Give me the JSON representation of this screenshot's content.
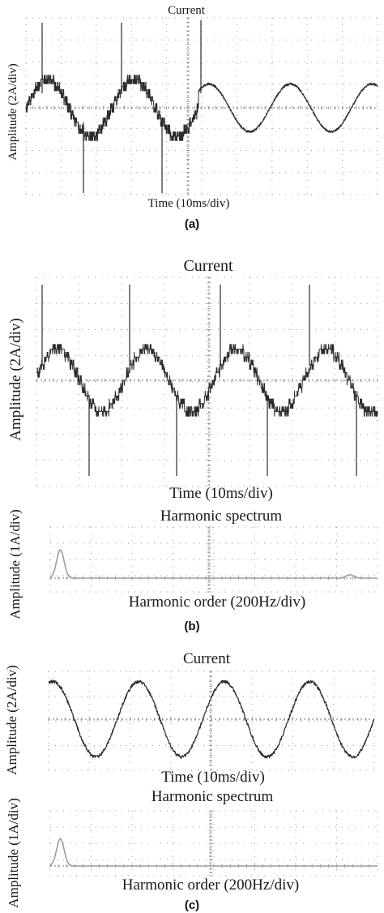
{
  "chart_data": [
    {
      "type": "line",
      "panel": "(a)",
      "title": "Current",
      "xlabel": "Time (10ms/div)",
      "ylabel": "Amplitude (2A/div)",
      "grid": true,
      "series": [
        {
          "shape": "stepped multilevel sine with switching spikes, then smooth sine",
          "peak_div": 1.25,
          "spike_div": 2.3,
          "cycles": 2,
          "smooth_after_cycles": 2,
          "smooth_cycles": 2.2,
          "smooth_peak_div": 1.05,
          "color": "#2b2b2b"
        }
      ]
    },
    {
      "type": "line",
      "panel": "(b)",
      "title": "Current",
      "xlabel": "Time (10ms/div)",
      "ylabel": "Amplitude (2A/div)",
      "grid": true,
      "series": [
        {
          "shape": "stepped multilevel sine with switching spikes",
          "peak_div": 1.2,
          "spike_div": 2.3,
          "cycles": 3.8,
          "color": "#2b2b2b"
        }
      ]
    },
    {
      "type": "area",
      "panel": "(b)",
      "title": "Harmonic spectrum",
      "xlabel": "Harmonic order (200Hz/div)",
      "ylabel": "Amplitude (1A/div)",
      "grid": true,
      "peaks": [
        {
          "position_div": 0.25,
          "amplitude_div": 1.25
        },
        {
          "position_div": 7.4,
          "amplitude_div": 0.15
        }
      ],
      "color": "#9c9c9c"
    },
    {
      "type": "line",
      "panel": "(c)",
      "title": "Current",
      "xlabel": "Time (10ms/div)",
      "ylabel": "Amplitude (2A/div)",
      "grid": true,
      "series": [
        {
          "shape": "sine with ripple",
          "peak_div": 1.45,
          "cycles": 3.8,
          "color": "#2b2b2b"
        }
      ]
    },
    {
      "type": "area",
      "panel": "(c)",
      "title": "Harmonic spectrum",
      "xlabel": "Harmonic order (200Hz/div)",
      "ylabel": "Amplitude (1A/div)",
      "grid": true,
      "peaks": [
        {
          "position_div": 0.25,
          "amplitude_div": 1.2
        }
      ],
      "color": "#9c9c9c"
    }
  ],
  "labels": {
    "a": "(a)",
    "b": "(b)",
    "c": "(c)"
  }
}
